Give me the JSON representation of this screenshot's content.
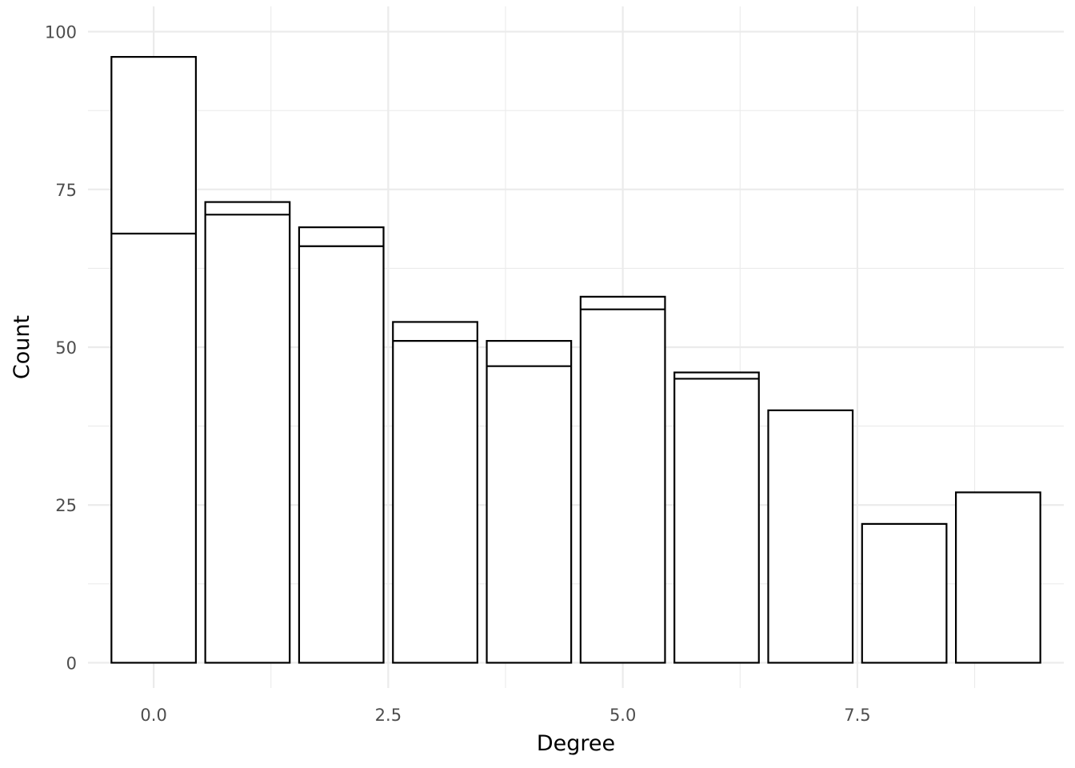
{
  "chart_data": {
    "type": "bar",
    "stacked": true,
    "title": "",
    "xlabel": "Degree",
    "ylabel": "Count",
    "x": [
      0,
      1,
      2,
      3,
      4,
      5,
      6,
      7,
      8,
      9
    ],
    "series": [
      {
        "values": [
          68,
          71,
          66,
          51,
          47,
          56,
          45,
          40,
          22,
          27
        ]
      },
      {
        "values": [
          28,
          2,
          3,
          3,
          4,
          2,
          1,
          0,
          0,
          0
        ]
      }
    ],
    "totals": [
      96,
      73,
      69,
      54,
      51,
      58,
      46,
      40,
      22,
      27
    ],
    "xlim": [
      -0.5,
      9.5
    ],
    "ylim": [
      0,
      100
    ],
    "x_ticks": [
      0,
      2.5,
      5,
      7.5
    ],
    "x_tick_labels": [
      "0.0",
      "2.5",
      "5.0",
      "7.5"
    ],
    "y_ticks": [
      0,
      25,
      50,
      75,
      100
    ],
    "y_tick_labels": [
      "0",
      "25",
      "50",
      "75",
      "100"
    ],
    "grid": true,
    "legend": "none",
    "bar_fill": "#ffffff",
    "bar_outline": "#000000",
    "grid_color": "#ebebeb"
  }
}
